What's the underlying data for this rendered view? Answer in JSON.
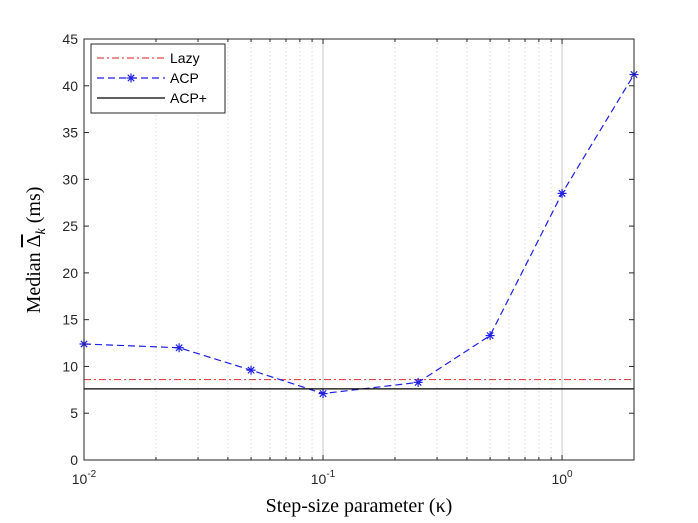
{
  "chart_data": {
    "type": "line",
    "xscale": "log",
    "xlim": [
      0.01,
      2
    ],
    "ylim": [
      0,
      45
    ],
    "grid": {
      "x_major": true,
      "x_minor": true,
      "y_major": false
    },
    "xlabel": "Step-size parameter (κ)",
    "ylabel_prefix": "Median ",
    "ylabel_symbol": "Δ",
    "ylabel_subscript": "k",
    "ylabel_suffix": " (ms)",
    "xticks": [
      0.01,
      0.1,
      1
    ],
    "xtick_labels": [
      {
        "base": "10",
        "exp": "-2"
      },
      {
        "base": "10",
        "exp": "-1"
      },
      {
        "base": "10",
        "exp": "0"
      }
    ],
    "yticks": [
      0,
      5,
      10,
      15,
      20,
      25,
      30,
      35,
      40,
      45
    ],
    "legend_position": "top-left",
    "series": [
      {
        "name": "Lazy",
        "kind": "hline",
        "y": 8.6,
        "color": "#e8474a",
        "dash": "dashdot"
      },
      {
        "name": "ACP",
        "kind": "line",
        "color": "#1f1fe6",
        "dash": "dashed",
        "marker": "asterisk",
        "x": [
          0.01,
          0.025,
          0.05,
          0.1,
          0.25,
          0.5,
          1,
          2
        ],
        "y": [
          12.4,
          12.0,
          9.6,
          7.1,
          8.3,
          13.3,
          28.5,
          41.2
        ]
      },
      {
        "name": "ACP+",
        "kind": "hline",
        "y": 7.6,
        "color": "#000000",
        "dash": "solid"
      }
    ]
  }
}
